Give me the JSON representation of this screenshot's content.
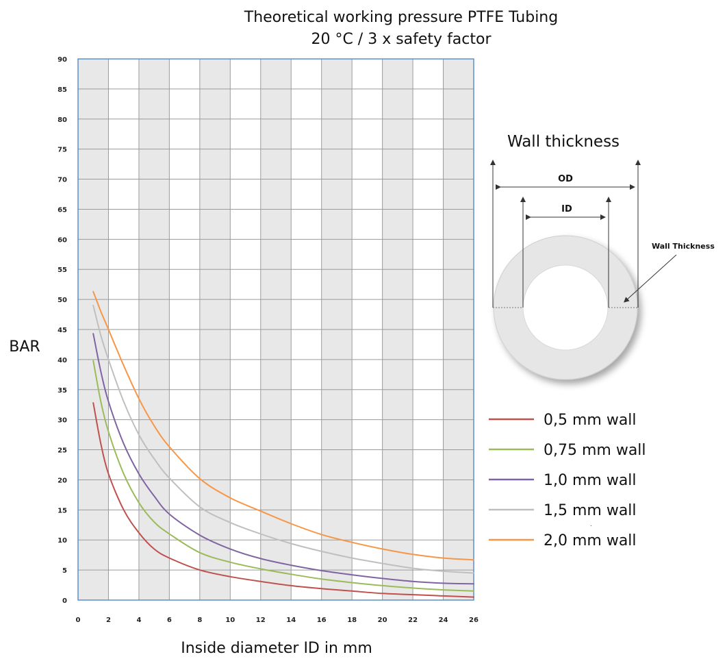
{
  "chart_data": {
    "type": "line",
    "title": "Theoretical working pressure PTFE Tubing",
    "subtitle": "20 °C / 3 x safety factor",
    "xlabel": "Inside diameter ID in mm",
    "ylabel": "BAR",
    "xlim": [
      0,
      26
    ],
    "ylim": [
      0,
      90
    ],
    "x_ticks": [
      0,
      2,
      4,
      6,
      8,
      10,
      12,
      14,
      16,
      18,
      20,
      22,
      24,
      26
    ],
    "y_ticks": [
      0,
      5,
      10,
      15,
      20,
      25,
      30,
      35,
      40,
      45,
      50,
      55,
      60,
      65,
      70,
      75,
      80,
      85,
      90
    ],
    "grid": true,
    "legend_position": "right",
    "series": [
      {
        "name": "0,5 mm wall",
        "color": "#c0504d",
        "x": [
          1,
          1.5,
          2,
          3,
          4,
          5,
          6,
          8,
          10,
          12,
          14,
          16,
          18,
          20,
          22,
          24,
          26
        ],
        "y": [
          32.8,
          26,
          21,
          15,
          11.2,
          8.5,
          7,
          5,
          3.9,
          3.1,
          2.4,
          1.9,
          1.5,
          1.1,
          0.9,
          0.7,
          0.5
        ]
      },
      {
        "name": "0,75 mm wall",
        "color": "#9bbb59",
        "x": [
          1,
          1.5,
          2,
          3,
          4,
          5,
          6,
          8,
          10,
          12,
          14,
          16,
          18,
          20,
          22,
          24,
          26
        ],
        "y": [
          39.8,
          33,
          28,
          21,
          16.2,
          13,
          11,
          7.9,
          6.3,
          5.2,
          4.3,
          3.5,
          2.9,
          2.4,
          2,
          1.7,
          1.5
        ]
      },
      {
        "name": "1,0 mm wall",
        "color": "#8064a2",
        "x": [
          1,
          1.5,
          2,
          3,
          4,
          5,
          6,
          8,
          10,
          12,
          14,
          16,
          18,
          20,
          22,
          24,
          26
        ],
        "y": [
          44.3,
          38,
          33,
          26,
          21,
          17.3,
          14.3,
          10.8,
          8.5,
          6.9,
          5.8,
          4.9,
          4.2,
          3.6,
          3.1,
          2.8,
          2.7
        ]
      },
      {
        "name": "1,5 mm wall",
        "color": "#bfbfbf",
        "x": [
          1,
          1.5,
          2,
          3,
          4,
          5,
          6,
          8,
          10,
          12,
          14,
          16,
          18,
          20,
          22,
          24,
          26
        ],
        "y": [
          49,
          44,
          40,
          33,
          27.5,
          23.5,
          20.3,
          15.5,
          12.9,
          11,
          9.4,
          8.1,
          7,
          6.1,
          5.3,
          4.8,
          4.5
        ]
      },
      {
        "name": "2,0 mm wall",
        "color": "#f79646",
        "x": [
          1,
          1.5,
          2,
          3,
          4,
          5,
          6,
          8,
          10,
          12,
          14,
          16,
          18,
          20,
          22,
          24,
          26
        ],
        "y": [
          51.3,
          48,
          45,
          39,
          33.5,
          29,
          25.5,
          20.2,
          17,
          14.8,
          12.7,
          10.9,
          9.6,
          8.5,
          7.6,
          7,
          6.7
        ]
      }
    ]
  },
  "diagram": {
    "title": "Wall thickness",
    "od_label": "OD",
    "id_label": "ID",
    "wall_label": "Wall Thickness"
  }
}
